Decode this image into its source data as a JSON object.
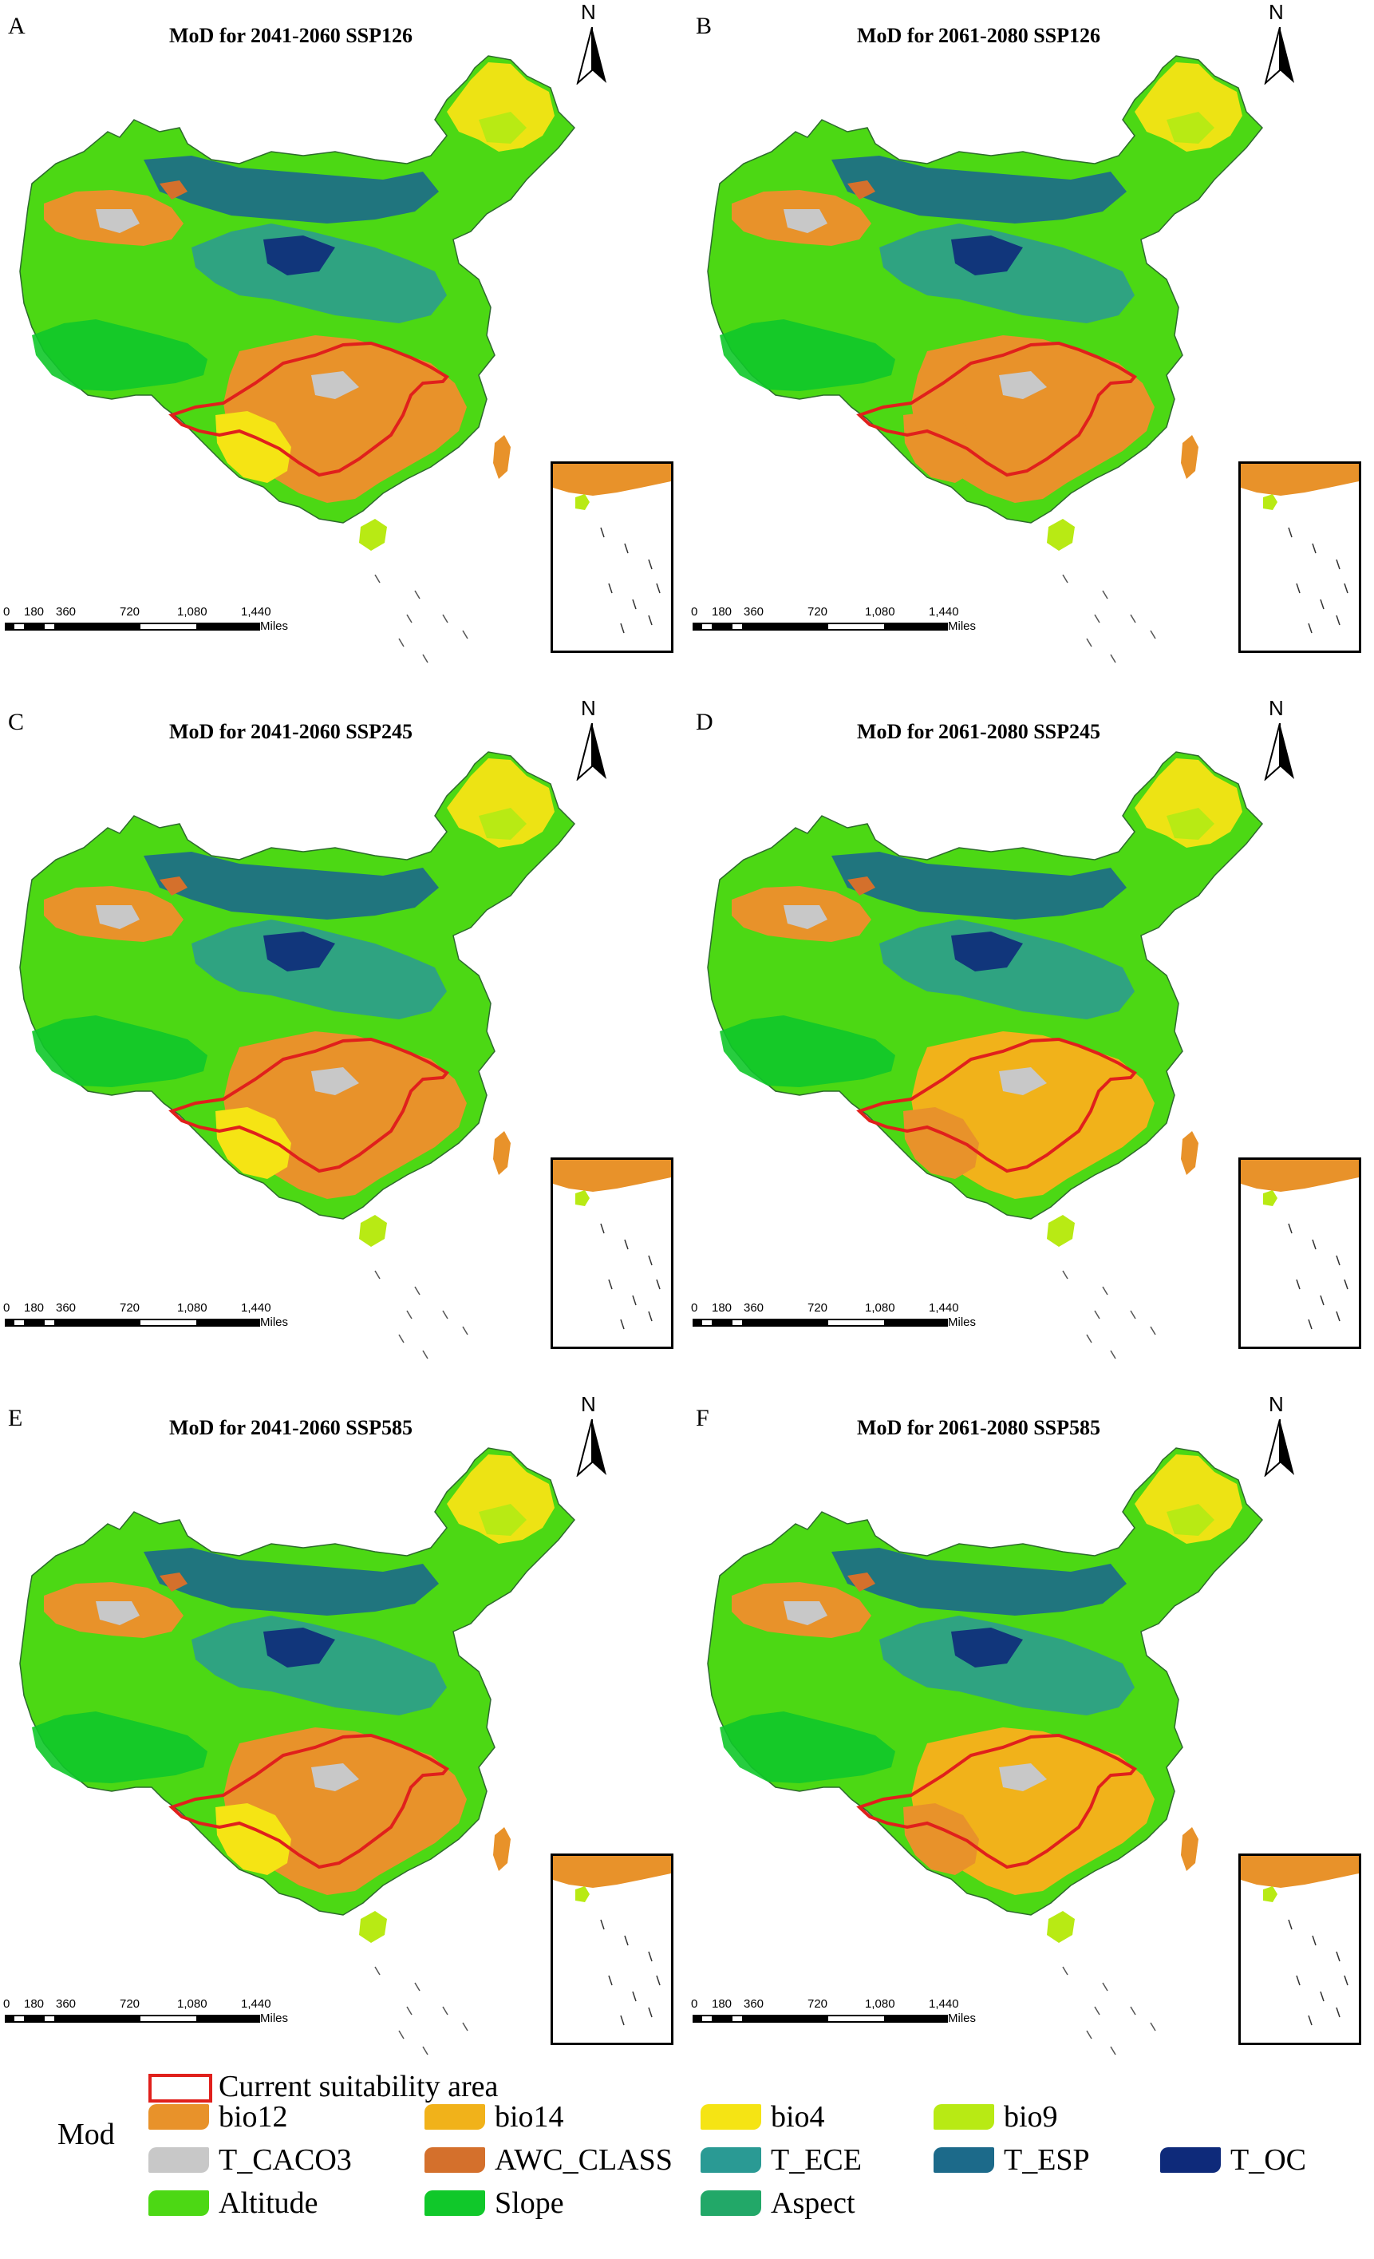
{
  "panels": [
    {
      "id": "A",
      "letter": "A",
      "title": "MoD for 2041-2060 SSP126",
      "variant": 0
    },
    {
      "id": "B",
      "letter": "B",
      "title": "MoD for 2061-2080 SSP126",
      "variant": 1
    },
    {
      "id": "C",
      "letter": "C",
      "title": "MoD for 2041-2060 SSP245",
      "variant": 2
    },
    {
      "id": "D",
      "letter": "D",
      "title": "MoD for 2061-2080 SSP245",
      "variant": 3
    },
    {
      "id": "E",
      "letter": "E",
      "title": "MoD for 2041-2060 SSP585",
      "variant": 4
    },
    {
      "id": "F",
      "letter": "F",
      "title": "MoD for 2061-2080 SSP585",
      "variant": 5
    }
  ],
  "north_arrow": {
    "label": "N"
  },
  "scale_bar": {
    "ticks": [
      "0",
      "180",
      "360",
      "720",
      "1,080",
      "1,440"
    ],
    "unit": "Miles"
  },
  "legend": {
    "heading": "Mod",
    "outline_label": "Current suitability area",
    "outline_color": "#e0201c",
    "items": [
      {
        "label": "bio12",
        "color": "#e8922a"
      },
      {
        "label": "bio14",
        "color": "#f1b21a"
      },
      {
        "label": "bio4",
        "color": "#f5e414"
      },
      {
        "label": "bio9",
        "color": "#b8ea14"
      },
      {
        "label": "T_CACO3",
        "color": "#c8c8c8"
      },
      {
        "label": "AWC_CLASS",
        "color": "#d4702c"
      },
      {
        "label": "T_ECE",
        "color": "#2a9a94"
      },
      {
        "label": "T_ESP",
        "color": "#1c6a8a"
      },
      {
        "label": "T_OC",
        "color": "#0e2a7a"
      },
      {
        "label": "Altitude",
        "color": "#4cd814"
      },
      {
        "label": "Slope",
        "color": "#10c82a"
      },
      {
        "label": "Aspect",
        "color": "#22a868"
      }
    ]
  }
}
